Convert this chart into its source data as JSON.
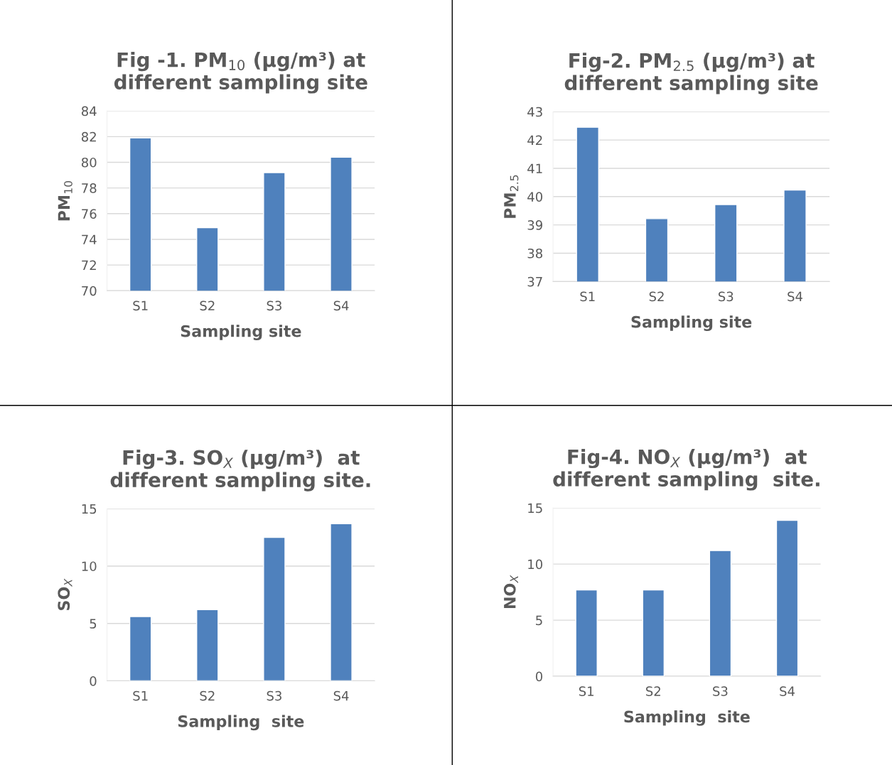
{
  "chart_data": [
    {
      "type": "bar",
      "title": "Fig -1. PM$_{10}$ (µg/m³) at\ndifferent sampling site",
      "xlabel": "Sampling site",
      "ylabel": "PM$_{10}$",
      "categories": [
        "S1",
        "S2",
        "S3",
        "S4"
      ],
      "values": [
        81.9,
        74.9,
        79.2,
        80.4
      ],
      "color": "#4f81bd",
      "ylim": [
        70,
        84
      ],
      "yticks": [
        70,
        72,
        74,
        76,
        78,
        80,
        82,
        84
      ],
      "grid": "y"
    },
    {
      "type": "bar",
      "title": "Fig-2. PM$_{2.5}$ (µg/m³) at\ndifferent sampling site",
      "xlabel": "Sampling site",
      "ylabel": "PM$_{2.5}$",
      "categories": [
        "S1",
        "S2",
        "S3",
        "S4"
      ],
      "values": [
        42.45,
        39.22,
        39.72,
        40.23
      ],
      "color": "#4f81bd",
      "ylim": [
        37,
        43
      ],
      "yticks": [
        37,
        38,
        39,
        40,
        41,
        42,
        43
      ],
      "grid": "y"
    },
    {
      "type": "bar",
      "title": "Fig-3. SO$_{X}$ (µg/m³)  at\ndifferent sampling site.",
      "xlabel": "Sampling  site",
      "ylabel": "SO$_{X}$",
      "categories": [
        "S1",
        "S2",
        "S3",
        "S4"
      ],
      "values": [
        5.6,
        6.2,
        12.5,
        13.7
      ],
      "color": "#4f81bd",
      "ylim": [
        0,
        15
      ],
      "yticks": [
        0,
        5,
        10,
        15
      ],
      "grid": "y"
    },
    {
      "type": "bar",
      "title": "Fig-4. NO$_{X}$ (µg/m³)  at\ndifferent sampling  site.",
      "xlabel": "Sampling  site",
      "ylabel": "NO$_{X}$",
      "categories": [
        "S1",
        "S2",
        "S3",
        "S4"
      ],
      "values": [
        7.7,
        7.7,
        11.2,
        13.9
      ],
      "color": "#4f81bd",
      "ylim": [
        0,
        15
      ],
      "yticks": [
        0,
        5,
        10,
        15
      ],
      "grid": "y"
    }
  ]
}
